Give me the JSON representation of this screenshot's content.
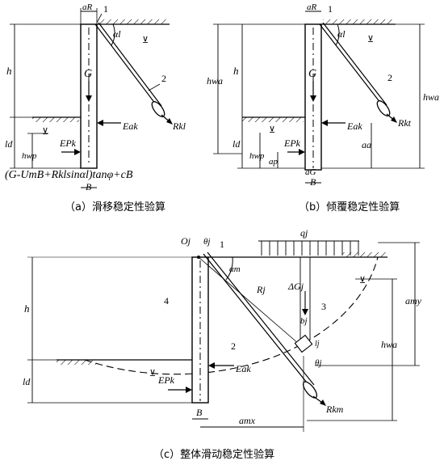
{
  "captions": {
    "a": "（a）滑移稳定性验算",
    "b": "（b）倾覆稳定性验算",
    "c": "（c）整体滑动稳定性验算"
  },
  "panel_a": {
    "aR": "aR",
    "one": "1",
    "alpha": "αl",
    "h": "h",
    "G": "G",
    "two": "2",
    "Rk": "Rkl",
    "Eak": "Eak",
    "ld": "ld",
    "hwp": "hwp",
    "Epk": "EPk",
    "formula": "(G-UmB+Rklsinαl)tanφ+cB",
    "B": "B"
  },
  "panel_b": {
    "aR": "aR",
    "one": "1",
    "alpha": "αl",
    "h": "h",
    "hwa": "hwa",
    "hwa2": "hwa",
    "G": "G",
    "two": "2",
    "Rk": "Rkt",
    "Eak": "Eak",
    "ld": "ld",
    "hwp": "hwp",
    "ap": "ap",
    "Epk": "EPk",
    "aa": "aa",
    "aG": "aG",
    "B": "B"
  },
  "panel_c": {
    "Oj": "Oj",
    "theta": "θj",
    "one": "1",
    "qj": "qj",
    "alpha": "αm",
    "Rj": "Rj",
    "dG": "ΔGj",
    "bj": "bj",
    "three": "3",
    "four": "4",
    "two": "2",
    "h": "h",
    "ld": "ld",
    "Epk": "EPk",
    "Eak": "Eak",
    "theta2": "θj",
    "Rkm": "Rkm",
    "B": "B",
    "amx": "amx",
    "hwa": "hwa",
    "amy": "amy",
    "lj": "lj"
  }
}
